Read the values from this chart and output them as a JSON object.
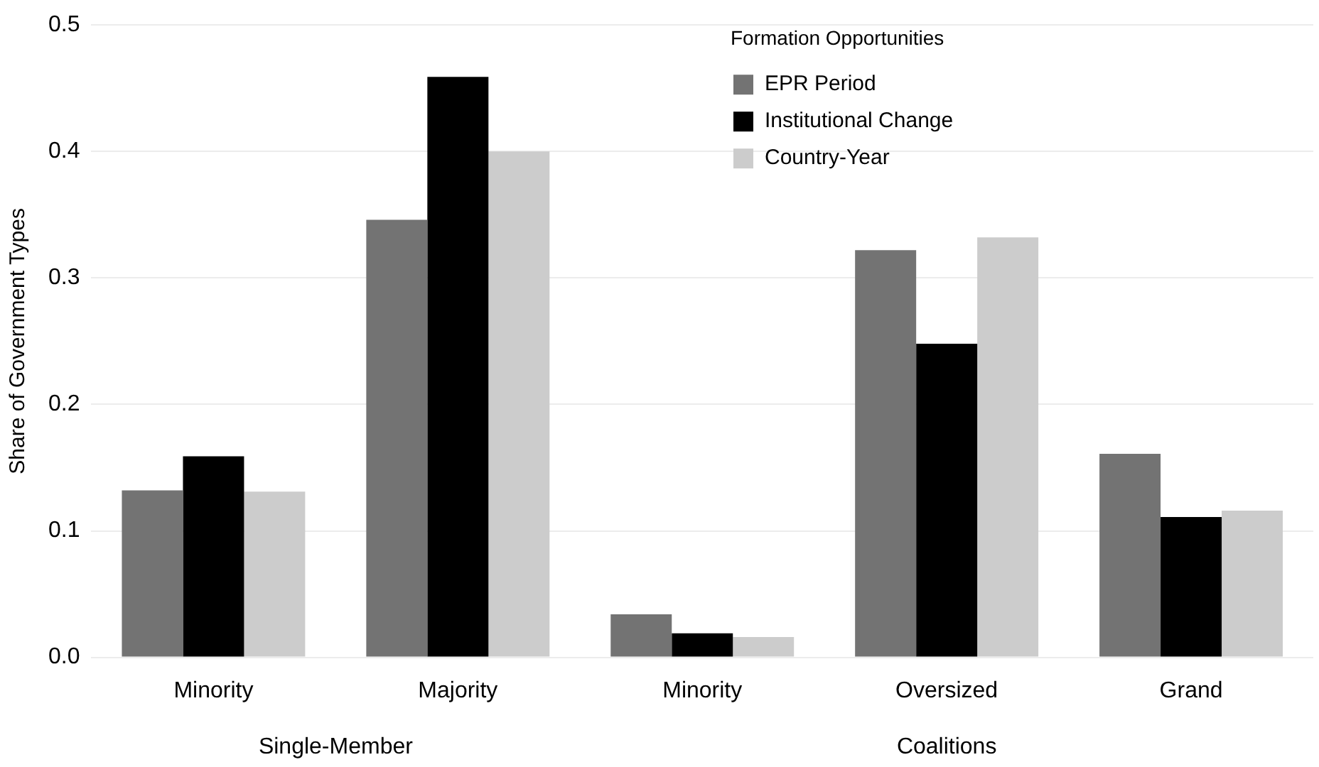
{
  "chart_data": {
    "type": "bar",
    "ylabel": "Share of Government Types",
    "legend_title": "Formation Opportunities",
    "categories": [
      "Minority",
      "Majority",
      "Minority",
      "Oversized",
      "Grand"
    ],
    "annotations": [
      "Single-Member",
      "Coalitions"
    ],
    "series": [
      {
        "name": "EPR Period",
        "color": "#737373",
        "values": [
          0.132,
          0.346,
          0.034,
          0.322,
          0.161
        ]
      },
      {
        "name": "Institutional Change",
        "color": "#000000",
        "values": [
          0.159,
          0.459,
          0.019,
          0.248,
          0.111
        ]
      },
      {
        "name": "Country-Year",
        "color": "#cccccc",
        "values": [
          0.131,
          0.4,
          0.016,
          0.332,
          0.116
        ]
      }
    ],
    "ylim": [
      0,
      0.5
    ],
    "yticks": [
      {
        "value": 0,
        "label": "0.0"
      },
      0.1,
      0.2,
      0.3,
      0.4,
      0.5
    ],
    "grid": "y",
    "legend": "top right"
  }
}
